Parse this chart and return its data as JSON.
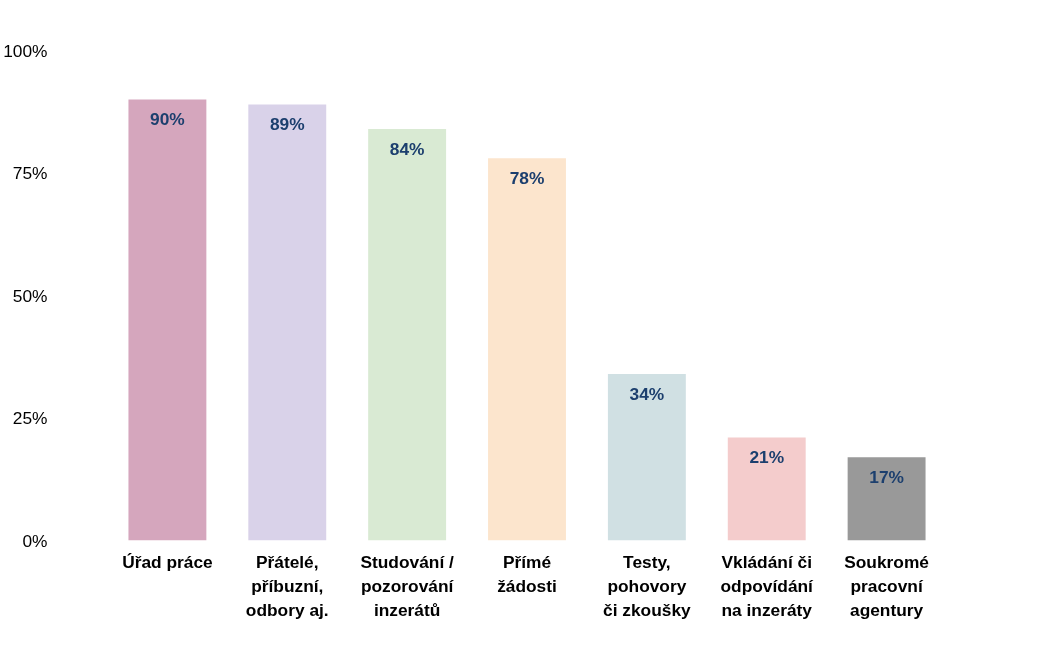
{
  "chart_data": {
    "type": "bar",
    "categories": [
      "Úřad práce",
      "Přátelé,\npříbuzní,\nodbory aj.",
      "Studování /\npozorování\ninzerátů",
      "Přímé\nžádosti",
      "Testy,\npohovory\nči zkoušky",
      "Vkládání či\nodpovídání\nna inzeráty",
      "Soukromé\npracovní\nagentury"
    ],
    "values": [
      90,
      89,
      84,
      78,
      34,
      21,
      17
    ],
    "colors": [
      "#d5a6bd",
      "#d9d2e9",
      "#d9ead3",
      "#fce5cd",
      "#d0e0e3",
      "#f4cccc",
      "#999999"
    ],
    "value_labels": [
      "90%",
      "89%",
      "84%",
      "78%",
      "34%",
      "21%",
      "17%"
    ],
    "ylim": [
      0,
      100
    ],
    "yticks": [
      {
        "value": 0,
        "label": "0%"
      },
      {
        "value": 25,
        "label": "25%"
      },
      {
        "value": 50,
        "label": "50%"
      },
      {
        "value": 75,
        "label": "75%"
      },
      {
        "value": 100,
        "label": "100%"
      }
    ],
    "grid": false
  }
}
